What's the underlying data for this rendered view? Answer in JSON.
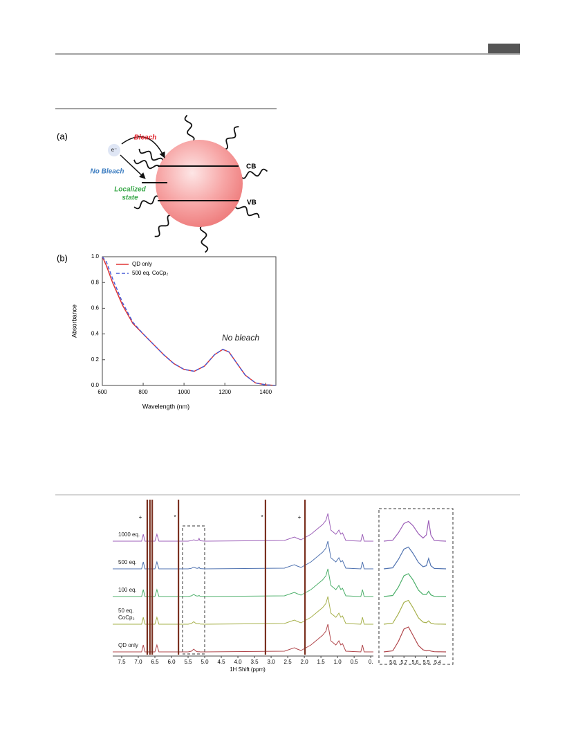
{
  "figure_a": {
    "label": "(a)",
    "electron": "e⁻",
    "bleach": "Bleach",
    "no_bleach": "No Bleach",
    "localized": "Localized",
    "state": "state",
    "cb": "CB",
    "vb": "VB"
  },
  "chart_data": [
    {
      "type": "line",
      "label": "(b)",
      "xlabel": "Wavelength (nm)",
      "ylabel": "Absorbance",
      "annotation": "No bleach",
      "legend": "upper left",
      "x": [
        600,
        620,
        650,
        700,
        750,
        800,
        850,
        900,
        950,
        1000,
        1050,
        1100,
        1150,
        1190,
        1220,
        1260,
        1300,
        1350,
        1400,
        1450
      ],
      "series": [
        {
          "name": "QD only",
          "color": "#e03535",
          "linestyle": "solid",
          "values": [
            1.0,
            0.93,
            0.8,
            0.62,
            0.48,
            0.4,
            0.32,
            0.24,
            0.17,
            0.125,
            0.11,
            0.15,
            0.24,
            0.28,
            0.26,
            0.17,
            0.08,
            0.02,
            0.005,
            0
          ]
        },
        {
          "name": "500 eq. CoCp₂",
          "color": "#4b5ed6",
          "linestyle": "dashed",
          "values": [
            1.0,
            0.96,
            0.83,
            0.64,
            0.49,
            0.4,
            0.32,
            0.24,
            0.17,
            0.125,
            0.11,
            0.15,
            0.24,
            0.28,
            0.26,
            0.17,
            0.08,
            0.02,
            0.005,
            0
          ]
        }
      ],
      "xlim": [
        600,
        1450
      ],
      "xticks": [
        600,
        800,
        1000,
        1200,
        1400
      ],
      "ylim": [
        0,
        1.0
      ],
      "yticks": [
        {
          "value": 0,
          "label": "0.0"
        },
        0.2,
        0.4,
        0.6,
        0.8,
        {
          "value": 1,
          "label": "1.0"
        }
      ]
    },
    {
      "type": "nmr",
      "xlabel": "1H Shift (ppm)",
      "markers": [
        "+",
        "*",
        "*",
        "+"
      ],
      "xlim": [
        7.77,
        -0.08
      ],
      "xticks": [
        7.5,
        {
          "value": 7,
          "label": "7.0"
        },
        6.5,
        {
          "value": 6,
          "label": "6.0"
        },
        5.5,
        {
          "value": 5,
          "label": "5.0"
        },
        4.5,
        {
          "value": 4,
          "label": "4.0"
        },
        3.5,
        {
          "value": 3,
          "label": "3.0"
        },
        2.5,
        {
          "value": 2,
          "label": "2.0"
        },
        1.5,
        {
          "value": 1,
          "label": "1.0"
        },
        0.5,
        {
          "value": 0,
          "label": "0."
        }
      ],
      "solvent_peaks": [
        6.73,
        6.65,
        6.58,
        5.79,
        3.17,
        1.98
      ],
      "x": [
        7.77,
        7.0,
        6.9,
        6.85,
        6.8,
        6.5,
        6.44,
        6.38,
        5.5,
        5.4,
        5.33,
        5.26,
        5.2,
        5.17,
        5.14,
        5.0,
        2.6,
        2.3,
        2.21,
        2.1,
        1.8,
        1.6,
        1.45,
        1.35,
        1.29,
        1.2,
        1.05,
        0.96,
        0.9,
        0.85,
        0.75,
        0.3,
        0.25,
        0.2,
        -0.08
      ],
      "series": [
        {
          "name": "1000 eq.",
          "color": "#9c5fb8",
          "values": [
            0,
            0,
            0,
            0.5,
            0,
            0,
            0.5,
            0,
            0,
            0.04,
            0.1,
            0.05,
            0.05,
            0.2,
            0.03,
            0,
            0.05,
            0.3,
            0.2,
            0.1,
            0.5,
            0.9,
            1.2,
            1.5,
            2.0,
            0.8,
            0.5,
            0.8,
            0.5,
            0.6,
            0.05,
            0,
            0.5,
            0,
            0
          ]
        },
        {
          "name": "500 eq.",
          "color": "#4f72b0",
          "values": [
            0,
            0,
            0,
            0.5,
            0,
            0,
            0.5,
            0,
            0,
            0.04,
            0.12,
            0.05,
            0.04,
            0.12,
            0.02,
            0,
            0.05,
            0.3,
            0.2,
            0.1,
            0.5,
            0.9,
            1.2,
            1.5,
            2.0,
            0.8,
            0.5,
            0.8,
            0.5,
            0.6,
            0.05,
            0,
            0.5,
            0,
            0
          ]
        },
        {
          "name": "100 eq.",
          "color": "#4caf6a",
          "values": [
            0,
            0,
            0,
            0.5,
            0,
            0,
            0.5,
            0,
            0,
            0.05,
            0.15,
            0.05,
            0.03,
            0.08,
            0.02,
            0,
            0.05,
            0.3,
            0.2,
            0.1,
            0.5,
            0.9,
            1.2,
            1.5,
            2.0,
            0.8,
            0.5,
            0.8,
            0.5,
            0.6,
            0.05,
            0,
            0.5,
            0,
            0
          ]
        },
        {
          "name": "50 eq. CoCp₂",
          "color": "#a6b04a",
          "values": [
            0,
            0,
            0,
            0.5,
            0,
            0,
            0.5,
            0,
            0,
            0.05,
            0.18,
            0.05,
            0.02,
            0.05,
            0.01,
            0,
            0.05,
            0.3,
            0.2,
            0.1,
            0.5,
            0.9,
            1.2,
            1.5,
            2.0,
            0.8,
            0.5,
            0.8,
            0.5,
            0.6,
            0.05,
            0,
            0.5,
            0,
            0
          ]
        },
        {
          "name": "QD only",
          "color": "#b0454a",
          "values": [
            0,
            0,
            0,
            0.5,
            0,
            0,
            0.5,
            0,
            0,
            0.05,
            0.2,
            0.05,
            0,
            0.02,
            0,
            0,
            0.05,
            0.3,
            0.2,
            0.1,
            0.5,
            0.9,
            1.2,
            1.5,
            2.0,
            0.8,
            0.5,
            0.8,
            0.5,
            0.6,
            0.05,
            0,
            0.5,
            0,
            0
          ]
        }
      ],
      "inset": {
        "xlim": [
          5.88,
          5.325
        ],
        "xticks": [
          5.8,
          5.7,
          5.6,
          5.5,
          5.4
        ],
        "x": [
          5.88,
          5.8,
          5.75,
          5.7,
          5.66,
          5.62,
          5.57,
          5.53,
          5.5,
          5.48,
          5.46,
          5.43,
          5.325
        ],
        "values": [
          [
            0,
            0.05,
            0.4,
            0.85,
            0.95,
            0.75,
            0.35,
            0.15,
            0.3,
            1.0,
            0.3,
            0.03,
            0
          ],
          [
            0,
            0.05,
            0.45,
            0.95,
            1.05,
            0.75,
            0.3,
            0.1,
            0.15,
            0.5,
            0.15,
            0.02,
            0
          ],
          [
            0,
            0.05,
            0.45,
            1.0,
            1.1,
            0.8,
            0.3,
            0.1,
            0.1,
            0.25,
            0.08,
            0.01,
            0
          ],
          [
            0,
            0.05,
            0.5,
            1.05,
            1.15,
            0.8,
            0.3,
            0.1,
            0.07,
            0.16,
            0.05,
            0.01,
            0
          ],
          [
            0,
            0.05,
            0.5,
            1.1,
            1.2,
            0.8,
            0.3,
            0.1,
            0.05,
            0.08,
            0.04,
            0.01,
            0
          ]
        ]
      }
    }
  ]
}
